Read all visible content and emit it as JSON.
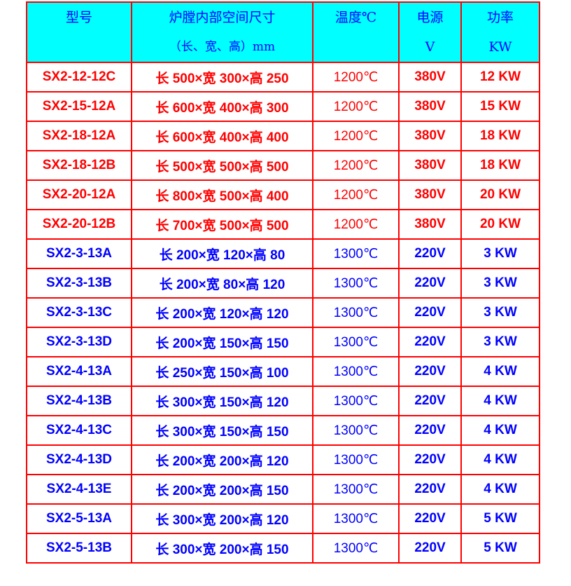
{
  "header": [
    {
      "line1": "型号",
      "line2": ""
    },
    {
      "line1": "炉膛内部空间尺寸",
      "line2": "（长、宽、高）mm"
    },
    {
      "line1": "温度℃",
      "line2": ""
    },
    {
      "line1": "电源",
      "line2": "V"
    },
    {
      "line1": "功率",
      "line2": "KW"
    }
  ],
  "colors": {
    "header_bg": "#00ffff",
    "border": "#ff0000",
    "red_text": "#ff0000",
    "blue_text": "#0000ff"
  },
  "rows": [
    {
      "model": "SX2-12-12C",
      "dims": "长 500×宽 300×高 250",
      "temp": "1200℃",
      "voltage": "380V",
      "power": "12 KW",
      "color": "red"
    },
    {
      "model": "SX2-15-12A",
      "dims": "长 600×宽 400×高 300",
      "temp": "1200℃",
      "voltage": "380V",
      "power": "15 KW",
      "color": "red"
    },
    {
      "model": "SX2-18-12A",
      "dims": "长 600×宽 400×高 400",
      "temp": "1200℃",
      "voltage": "380V",
      "power": "18 KW",
      "color": "red"
    },
    {
      "model": "SX2-18-12B",
      "dims": "长 500×宽 500×高 500",
      "temp": "1200℃",
      "voltage": "380V",
      "power": "18 KW",
      "color": "red"
    },
    {
      "model": "SX2-20-12A",
      "dims": "长 800×宽 500×高 400",
      "temp": "1200℃",
      "voltage": "380V",
      "power": "20 KW",
      "color": "red"
    },
    {
      "model": "SX2-20-12B",
      "dims": "长 700×宽 500×高 500",
      "temp": "1200℃",
      "voltage": "380V",
      "power": "20 KW",
      "color": "red"
    },
    {
      "model": "SX2-3-13A",
      "dims": "长 200×宽 120×高 80",
      "temp": "1300℃",
      "voltage": "220V",
      "power": "3 KW",
      "color": "blue"
    },
    {
      "model": "SX2-3-13B",
      "dims": "长 200×宽 80×高 120",
      "temp": "1300℃",
      "voltage": "220V",
      "power": "3 KW",
      "color": "blue"
    },
    {
      "model": "SX2-3-13C",
      "dims": "长 200×宽 120×高 120",
      "temp": "1300℃",
      "voltage": "220V",
      "power": "3 KW",
      "color": "blue"
    },
    {
      "model": "SX2-3-13D",
      "dims": "长 200×宽 150×高 150",
      "temp": "1300℃",
      "voltage": "220V",
      "power": "3 KW",
      "color": "blue"
    },
    {
      "model": "SX2-4-13A",
      "dims": "长 250×宽 150×高 100",
      "temp": "1300℃",
      "voltage": "220V",
      "power": "4 KW",
      "color": "blue"
    },
    {
      "model": "SX2-4-13B",
      "dims": "长 300×宽 150×高 120",
      "temp": "1300℃",
      "voltage": "220V",
      "power": "4 KW",
      "color": "blue"
    },
    {
      "model": "SX2-4-13C",
      "dims": "长 300×宽 150×高 150",
      "temp": "1300℃",
      "voltage": "220V",
      "power": "4 KW",
      "color": "blue"
    },
    {
      "model": "SX2-4-13D",
      "dims": "长 200×宽 200×高 120",
      "temp": "1300℃",
      "voltage": "220V",
      "power": "4 KW",
      "color": "blue"
    },
    {
      "model": "SX2-4-13E",
      "dims": "长 200×宽 200×高 150",
      "temp": "1300℃",
      "voltage": "220V",
      "power": "4 KW",
      "color": "blue"
    },
    {
      "model": "SX2-5-13A",
      "dims": "长 300×宽 200×高 120",
      "temp": "1300℃",
      "voltage": "220V",
      "power": "5 KW",
      "color": "blue"
    },
    {
      "model": "SX2-5-13B",
      "dims": "长 300×宽 200×高 150",
      "temp": "1300℃",
      "voltage": "220V",
      "power": "5 KW",
      "color": "blue"
    }
  ]
}
